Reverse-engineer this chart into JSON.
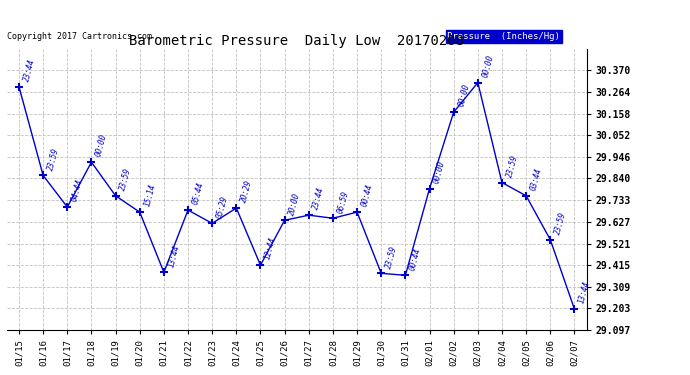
{
  "title": "Barometric Pressure  Daily Low  20170208",
  "copyright": "Copyright 2017 Cartronics.com",
  "legend_label": "Pressure  (Inches/Hg)",
  "x_labels": [
    "01/15",
    "01/16",
    "01/17",
    "01/18",
    "01/19",
    "01/20",
    "01/21",
    "01/22",
    "01/23",
    "01/24",
    "01/25",
    "01/26",
    "01/27",
    "01/28",
    "01/29",
    "01/30",
    "01/31",
    "02/01",
    "02/02",
    "02/03",
    "02/04",
    "02/05",
    "02/06",
    "02/07"
  ],
  "y_values": [
    30.29,
    29.855,
    29.7,
    29.92,
    29.755,
    29.675,
    29.38,
    29.685,
    29.62,
    29.695,
    29.415,
    29.635,
    29.66,
    29.645,
    29.675,
    29.375,
    29.365,
    29.79,
    30.165,
    30.31,
    29.82,
    29.755,
    29.54,
    29.2
  ],
  "time_labels": [
    "23:44",
    "23:59",
    "04:44",
    "00:00",
    "23:59",
    "15:14",
    "13:44",
    "05:44",
    "05:29",
    "20:29",
    "12:44",
    "20:00",
    "23:44",
    "06:59",
    "00:44",
    "23:59",
    "00:44",
    "00:00",
    "00:00",
    "00:00",
    "23:59",
    "03:44",
    "23:59",
    "13:44"
  ],
  "line_color": "#0000CC",
  "bg_color": "#ffffff",
  "grid_color": "#bbbbbb",
  "y_min": 29.097,
  "y_max": 30.476,
  "y_ticks": [
    29.097,
    29.203,
    29.309,
    29.415,
    29.521,
    29.627,
    29.733,
    29.84,
    29.946,
    30.052,
    30.158,
    30.264,
    30.37
  ],
  "legend_bg": "#0000CC",
  "legend_fg": "#ffffff"
}
